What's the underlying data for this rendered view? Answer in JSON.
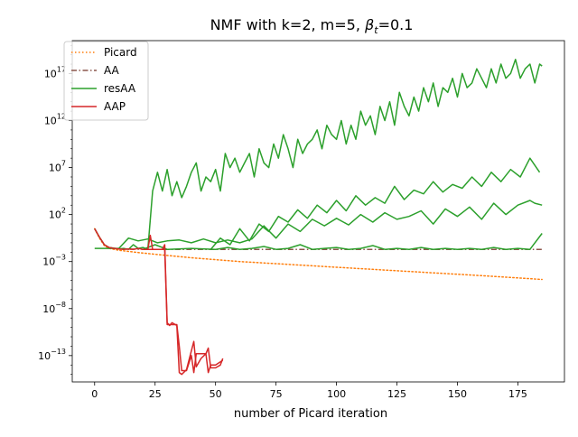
{
  "chart_data": {
    "type": "line",
    "title": "NMF with k=2, m=5,  β_t=0.1",
    "title_main": "NMF with k=2, m=5,  ",
    "title_beta": "β",
    "title_sub": "t",
    "title_tail": "=0.1",
    "xlabel": "number of Picard iteration",
    "ylabel": "",
    "xlim": [
      -9.25,
      194.25
    ],
    "ylim_log10": [
      -15.8,
      20.5
    ],
    "yscale": "log",
    "grid": false,
    "legend_position": "top-left",
    "x_ticks": [
      {
        "value": 0,
        "label": "0"
      },
      {
        "value": 25,
        "label": "25"
      },
      {
        "value": 50,
        "label": "50"
      },
      {
        "value": 75,
        "label": "75"
      },
      {
        "value": 100,
        "label": "100"
      },
      {
        "value": 125,
        "label": "125"
      },
      {
        "value": 150,
        "label": "150"
      },
      {
        "value": 175,
        "label": "175"
      }
    ],
    "y_ticks": [
      {
        "exp": -13,
        "base": "10",
        "sup": "−13"
      },
      {
        "exp": -8,
        "base": "10",
        "sup": "−8"
      },
      {
        "exp": -3,
        "base": "10",
        "sup": "−3"
      },
      {
        "exp": 2,
        "base": "10",
        "sup": "2"
      },
      {
        "exp": 7,
        "base": "10",
        "sup": "7"
      },
      {
        "exp": 12,
        "base": "10",
        "sup": "12"
      },
      {
        "exp": 17,
        "base": "10",
        "sup": "17"
      }
    ],
    "series": [
      {
        "name": "Picard",
        "color": "#ff7f0e",
        "style": "dotted",
        "x": [
          0,
          2,
          4,
          6,
          10,
          20,
          40,
          60,
          80,
          100,
          120,
          140,
          160,
          185
        ],
        "log10y": [
          0.5,
          -0.5,
          -1.3,
          -1.6,
          -1.8,
          -2.1,
          -2.6,
          -3.0,
          -3.3,
          -3.6,
          -3.9,
          -4.2,
          -4.5,
          -4.9
        ]
      },
      {
        "name": "AA",
        "color": "#8c564b",
        "style": "dashdot",
        "x": [
          0,
          2,
          4,
          6,
          10,
          20,
          40,
          60,
          80,
          100,
          120,
          140,
          160,
          185
        ],
        "log10y": [
          0.5,
          -0.4,
          -1.2,
          -1.5,
          -1.65,
          -1.7,
          -1.7,
          -1.7,
          -1.7,
          -1.7,
          -1.7,
          -1.7,
          -1.7,
          -1.7
        ]
      },
      {
        "name": "resAA",
        "color": "#2ca02c",
        "style": "solid",
        "x": [
          0,
          2,
          4,
          6,
          10,
          12,
          14,
          16,
          18,
          20,
          22,
          24,
          26,
          28,
          30,
          32,
          34,
          36,
          38,
          40,
          42,
          44,
          46,
          48,
          50,
          52,
          54,
          56,
          58,
          60,
          62,
          64,
          66,
          68,
          70,
          72,
          74,
          76,
          78,
          80,
          82,
          84,
          86,
          88,
          90,
          92,
          94,
          96,
          98,
          100,
          102,
          104,
          106,
          108,
          110,
          112,
          114,
          116,
          118,
          120,
          122,
          124,
          126,
          128,
          130,
          132,
          134,
          136,
          138,
          140,
          142,
          144,
          146,
          148,
          150,
          152,
          154,
          156,
          158,
          160,
          162,
          164,
          166,
          168,
          170,
          172,
          174,
          176,
          178,
          180,
          182,
          184,
          185
        ],
        "log10y": [
          0.5,
          -0.4,
          -1.2,
          -1.5,
          -1.65,
          -1.6,
          -1.7,
          -1.2,
          -1.6,
          -1.5,
          -1.7,
          4.5,
          6.5,
          4.5,
          6.8,
          4.0,
          5.5,
          3.8,
          5.0,
          6.5,
          7.5,
          4.5,
          6.0,
          5.5,
          6.8,
          4.5,
          8.5,
          7.0,
          8.0,
          6.5,
          7.5,
          8.5,
          6.0,
          9.0,
          7.5,
          7.0,
          9.5,
          8.0,
          10.5,
          9.0,
          7.0,
          10.0,
          8.5,
          9.5,
          10.0,
          11.0,
          9.0,
          11.5,
          10.5,
          10.0,
          12.0,
          9.5,
          11.5,
          10.0,
          13.0,
          11.5,
          12.5,
          10.5,
          13.5,
          12.0,
          14.0,
          11.5,
          15.0,
          13.5,
          12.5,
          14.5,
          13.0,
          15.5,
          14.0,
          16.0,
          13.5,
          15.5,
          15.0,
          16.5,
          14.5,
          17.0,
          15.5,
          16.0,
          17.5,
          16.5,
          15.5,
          17.5,
          16.0,
          18.0,
          16.5,
          17.0,
          18.5,
          16.5,
          17.5,
          18.0,
          16.0,
          18.0,
          17.8
        ]
      },
      {
        "name": "resAA",
        "color": "#2ca02c",
        "style": "solid",
        "x": [
          20,
          25,
          30,
          40,
          50,
          55,
          60,
          65,
          70,
          75,
          80,
          85,
          90,
          95,
          100,
          105,
          110,
          115,
          120,
          125,
          130,
          135,
          140,
          145,
          150,
          155,
          160,
          165,
          170,
          175,
          180,
          185
        ],
        "log10y": [
          -1.7,
          -1.2,
          -1.7,
          -1.6,
          -1.7,
          -1.5,
          -1.7,
          -1.6,
          -1.4,
          -1.7,
          -1.6,
          -1.2,
          -1.7,
          -1.6,
          -1.5,
          -1.7,
          -1.6,
          -1.3,
          -1.7,
          -1.6,
          -1.7,
          -1.5,
          -1.7,
          -1.6,
          -1.7,
          -1.6,
          -1.7,
          -1.5,
          -1.7,
          -1.6,
          -1.7,
          0.0
        ]
      },
      {
        "name": "resAA",
        "color": "#2ca02c",
        "style": "solid",
        "x": [
          48,
          52,
          56,
          60,
          64,
          68,
          72,
          76,
          80,
          84,
          88,
          92,
          96,
          100,
          104,
          108,
          112,
          116,
          120,
          124,
          128,
          132,
          136,
          140,
          144,
          148,
          152,
          156,
          160,
          164,
          168,
          172,
          176,
          180,
          184
        ],
        "log10y": [
          -1.7,
          -0.5,
          -1.2,
          0.5,
          -0.8,
          1.0,
          0.2,
          1.8,
          1.2,
          2.5,
          1.6,
          3.0,
          2.2,
          3.5,
          2.4,
          4.0,
          3.0,
          3.8,
          3.2,
          5.0,
          3.6,
          4.6,
          4.2,
          5.5,
          4.4,
          5.2,
          4.8,
          6.0,
          5.0,
          6.5,
          5.5,
          6.8,
          6.0,
          8.0,
          6.5
        ]
      },
      {
        "name": "resAA",
        "color": "#2ca02c",
        "style": "solid",
        "x": [
          0,
          10,
          14,
          18,
          22,
          26,
          30,
          35,
          40,
          45,
          50,
          55,
          60,
          65,
          70,
          75,
          80,
          85,
          90,
          95,
          100,
          105,
          110,
          115,
          120,
          125,
          130,
          135,
          140,
          145,
          150,
          155,
          160,
          165,
          170,
          175,
          180,
          182,
          185
        ],
        "log10y": [
          -1.6,
          -1.6,
          -0.5,
          -0.8,
          -0.6,
          -1.0,
          -0.8,
          -0.7,
          -1.0,
          -0.6,
          -1.0,
          -0.7,
          -1.0,
          -0.6,
          0.8,
          -0.5,
          1.0,
          0.2,
          1.5,
          0.8,
          1.6,
          0.9,
          2.0,
          1.2,
          2.2,
          1.5,
          1.8,
          2.4,
          1.0,
          2.6,
          1.8,
          2.8,
          1.5,
          3.2,
          2.0,
          3.0,
          3.5,
          3.2,
          3.0
        ]
      },
      {
        "name": "AAP",
        "color": "#d62728",
        "style": "solid",
        "x": [
          0,
          2,
          4,
          6,
          8,
          10,
          12,
          14,
          16,
          18,
          20,
          22,
          23,
          24,
          26,
          28,
          29,
          30,
          31,
          32,
          34,
          35,
          36,
          38,
          40,
          41,
          42,
          44,
          46,
          47,
          48,
          50,
          52,
          53
        ],
        "log10y": [
          0.5,
          -0.4,
          -1.2,
          -1.5,
          -1.6,
          -1.65,
          -1.7,
          -1.65,
          -1.7,
          -1.6,
          -1.7,
          -1.7,
          -0.2,
          -1.7,
          -1.7,
          -1.7,
          -1.2,
          -9.5,
          -9.8,
          -9.5,
          -9.8,
          -14.8,
          -15.0,
          -14.5,
          -12.5,
          -11.5,
          -14.2,
          -13.3,
          -12.8,
          -12.2,
          -14.3,
          -14.3,
          -14.0,
          -13.3
        ]
      },
      {
        "name": "AAP",
        "color": "#d62728",
        "style": "solid",
        "x": [
          22,
          23,
          24,
          28,
          29,
          30,
          34,
          35,
          36,
          38,
          40,
          41,
          42,
          46,
          47,
          48,
          50,
          53
        ],
        "log10y": [
          -1.7,
          -1.7,
          -1.7,
          -1.7,
          -1.7,
          -9.7,
          -9.7,
          -12.0,
          -14.6,
          -14.6,
          -13.0,
          -14.8,
          -12.8,
          -12.8,
          -14.8,
          -14.0,
          -14.0,
          -13.5
        ]
      }
    ],
    "legend": [
      {
        "label": "Picard",
        "color": "#ff7f0e",
        "style": "dotted"
      },
      {
        "label": "AA",
        "color": "#8c564b",
        "style": "dashdot"
      },
      {
        "label": "resAA",
        "color": "#2ca02c",
        "style": "solid"
      },
      {
        "label": "AAP",
        "color": "#d62728",
        "style": "solid"
      }
    ]
  }
}
